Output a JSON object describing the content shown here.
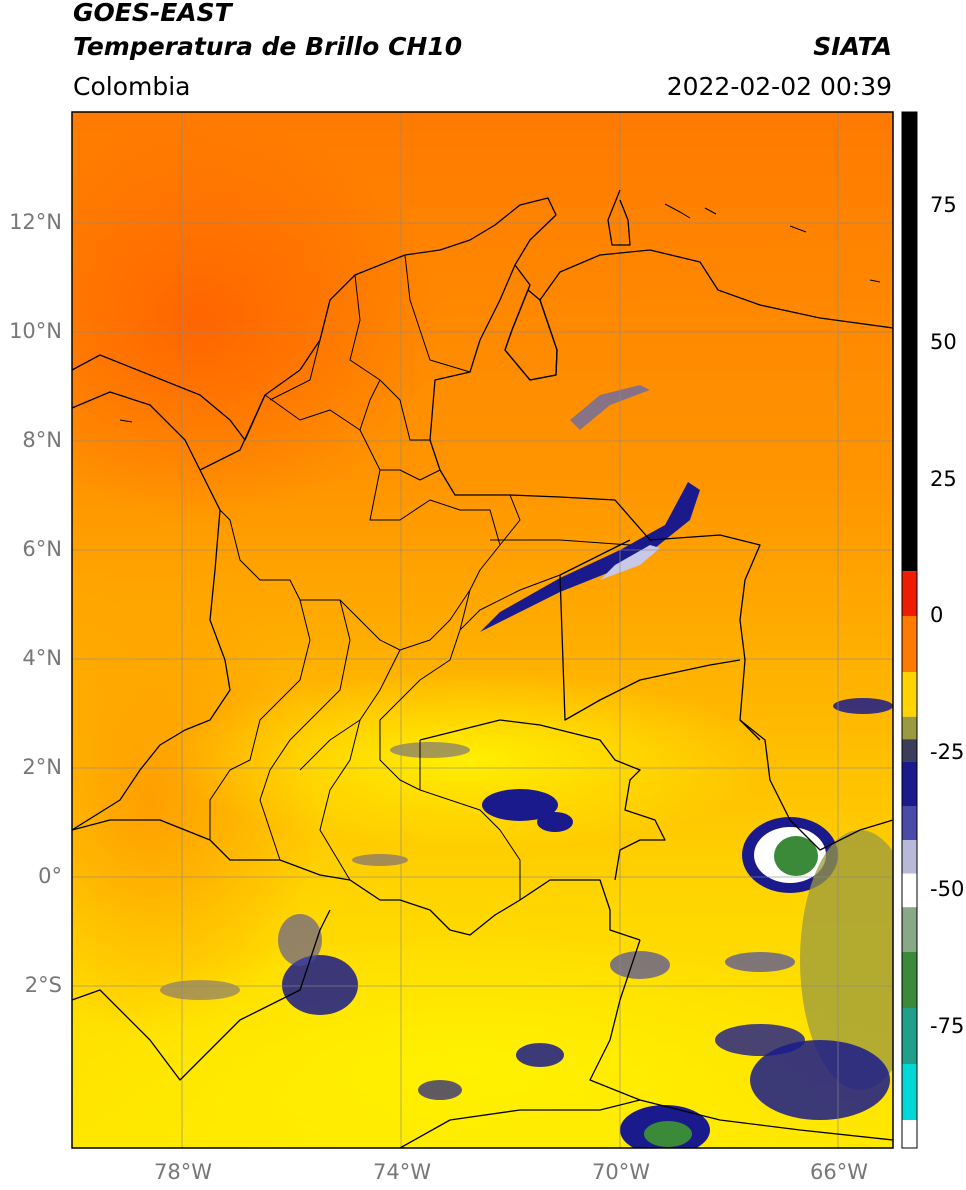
{
  "header": {
    "satellite": "GOES-EAST",
    "product": "Temperatura de Brillo CH10",
    "region": "Colombia",
    "agency": "SIATA",
    "datetime": "2022-02-02 00:39"
  },
  "map": {
    "lon_range": [
      -80,
      -65
    ],
    "lat_range": [
      -5,
      14
    ],
    "graticule": true,
    "borders": "black",
    "lon_ticks": [
      {
        "value": -78,
        "label": "78°W"
      },
      {
        "value": -74,
        "label": "74°W"
      },
      {
        "value": -70,
        "label": "70°W"
      },
      {
        "value": -66,
        "label": "66°W"
      }
    ],
    "lat_ticks": [
      {
        "value": 12,
        "label": "12°N"
      },
      {
        "value": 10,
        "label": "10°N"
      },
      {
        "value": 8,
        "label": "8°N"
      },
      {
        "value": 6,
        "label": "6°N"
      },
      {
        "value": 4,
        "label": "4°N"
      },
      {
        "value": 2,
        "label": "2°N"
      },
      {
        "value": 0,
        "label": "0°"
      },
      {
        "value": -2,
        "label": "2°S"
      }
    ]
  },
  "colorbar": {
    "range": [
      -95,
      90
    ],
    "ticks": [
      {
        "value": 75,
        "label": "75"
      },
      {
        "value": 50,
        "label": "50"
      },
      {
        "value": 25,
        "label": "25"
      },
      {
        "value": 0,
        "label": "0"
      },
      {
        "value": -25,
        "label": "-25"
      },
      {
        "value": -50,
        "label": "-50"
      },
      {
        "value": -75,
        "label": "-75"
      }
    ],
    "segments": [
      {
        "from": 8,
        "to": 90,
        "color": "#000000"
      },
      {
        "from": 0,
        "to": 8,
        "color": "#ee1c00"
      },
      {
        "from": -10,
        "to": 0,
        "color": "#ff7a00"
      },
      {
        "from": -18,
        "to": -10,
        "color": "#ffd400"
      },
      {
        "from": -22,
        "to": -18,
        "color": "#9a9a40"
      },
      {
        "from": -26,
        "to": -22,
        "color": "#3c3c5c"
      },
      {
        "from": -34,
        "to": -26,
        "color": "#1a1a8c"
      },
      {
        "from": -40,
        "to": -34,
        "color": "#4a4aa8"
      },
      {
        "from": -46,
        "to": -40,
        "color": "#b8b8d8"
      },
      {
        "from": -52,
        "to": -46,
        "color": "#ffffff"
      },
      {
        "from": -60,
        "to": -52,
        "color": "#88a888"
      },
      {
        "from": -70,
        "to": -60,
        "color": "#3a8a3a"
      },
      {
        "from": -80,
        "to": -70,
        "color": "#20a08a"
      },
      {
        "from": -90,
        "to": -80,
        "color": "#00d8d8"
      },
      {
        "from": -95,
        "to": -90,
        "color": "#ffffff"
      }
    ]
  }
}
